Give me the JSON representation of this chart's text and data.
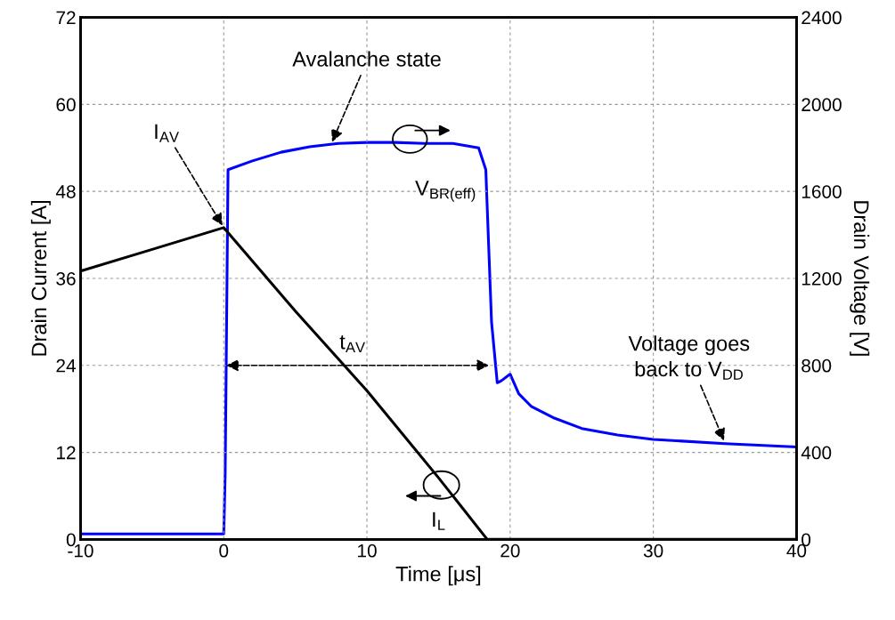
{
  "chart_data": {
    "type": "line",
    "xlabel": "Time [μs]",
    "ylabel": "Drain Current [A]",
    "y2label": "Drain Voltage [V]",
    "xlim": [
      -10,
      40
    ],
    "xticks": [
      -10,
      0,
      10,
      20,
      30,
      40
    ],
    "ylim": [
      0,
      72
    ],
    "yticks": [
      0,
      12,
      24,
      36,
      48,
      60,
      72
    ],
    "y2lim": [
      0,
      2400
    ],
    "y2ticks": [
      0,
      400,
      800,
      1200,
      1600,
      2000,
      2400
    ],
    "grid": true,
    "line_style": "solid",
    "marker": "none",
    "series": [
      {
        "color": "#000000",
        "x": [
          -10,
          -5,
          0,
          5,
          10,
          15,
          18.4,
          20,
          25,
          30,
          35,
          40
        ],
        "values": [
          37,
          40,
          43,
          31.5,
          20.5,
          8.5,
          0,
          0,
          0,
          0,
          0,
          0
        ]
      },
      {
        "color": "#0000ff",
        "axis": "y2",
        "x": [
          -10,
          -5,
          0,
          0.1,
          0.3,
          2,
          4,
          6,
          8,
          10,
          12,
          14,
          16,
          17.8,
          18.3,
          18.7,
          19.1,
          19.4,
          20,
          20.6,
          21.5,
          23,
          25,
          27.5,
          30,
          35,
          40
        ],
        "values": [
          25,
          25,
          25,
          300,
          1700,
          1740,
          1780,
          1805,
          1820,
          1825,
          1825,
          1820,
          1820,
          1800,
          1700,
          1000,
          720,
          730,
          760,
          670,
          610,
          560,
          510,
          480,
          460,
          440,
          425
        ]
      }
    ],
    "annotations": [
      {
        "text": "Avalanche state",
        "x": 7.5,
        "y": 54.5
      },
      {
        "text": "I$_{AV}$",
        "x": 0,
        "y": 43
      },
      "V$_{BR(eff)}$",
      "t$_{AV}$",
      "I$_{L}$",
      {
        "text": "Voltage goes\nback to V$_{DD}$",
        "x": 35,
        "y": 13.3
      }
    ]
  }
}
